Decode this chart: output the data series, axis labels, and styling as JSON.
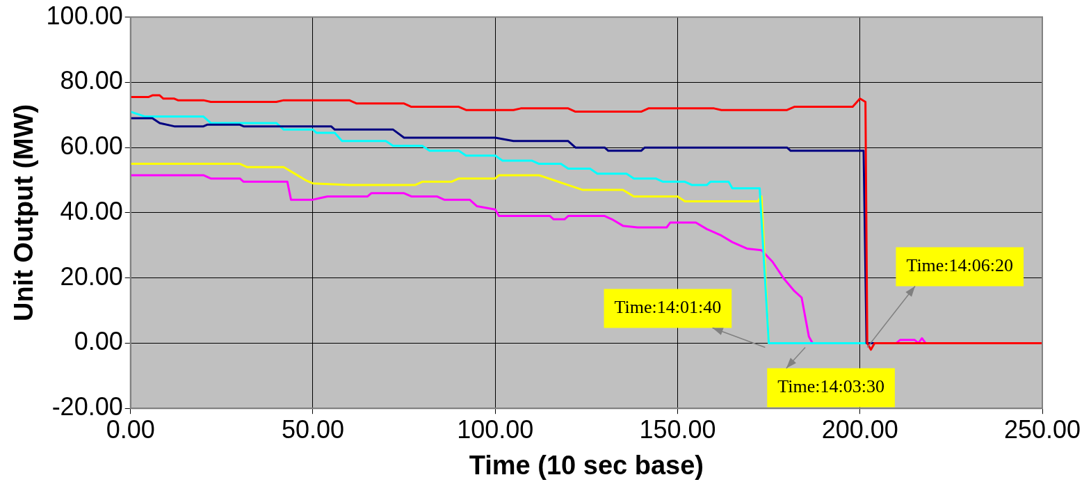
{
  "chart_data": {
    "type": "line",
    "xlabel": "Time (10 sec base)",
    "ylabel": "Unit Output (MW)",
    "xlim": [
      0,
      250
    ],
    "ylim": [
      -20,
      100
    ],
    "xticks": [
      {
        "value": 0,
        "label": "0.00"
      },
      {
        "value": 50,
        "label": "50.00"
      },
      {
        "value": 100,
        "label": "100.00"
      },
      {
        "value": 150,
        "label": "150.00"
      },
      {
        "value": 200,
        "label": "200.00"
      },
      {
        "value": 250,
        "label": "250.00"
      }
    ],
    "yticks": [
      {
        "value": -20,
        "label": "-20.00"
      },
      {
        "value": 0,
        "label": "0.00"
      },
      {
        "value": 20,
        "label": "20.00"
      },
      {
        "value": 40,
        "label": "40.00"
      },
      {
        "value": 60,
        "label": "60.00"
      },
      {
        "value": 80,
        "label": "80.00"
      },
      {
        "value": 100,
        "label": "100.00"
      }
    ],
    "grid": true,
    "marker": "none",
    "line_style": "solid",
    "series": [
      {
        "color": "#ff00ff",
        "x": [
          0,
          20,
          22,
          30,
          31,
          43,
          44,
          50,
          52,
          54,
          65,
          66,
          75,
          77,
          84,
          86,
          93,
          95,
          100,
          101,
          115,
          116,
          119,
          120,
          130,
          132,
          135,
          139,
          147,
          148,
          155,
          158,
          162,
          165,
          169,
          173,
          176,
          179,
          182,
          184,
          185,
          186,
          187,
          210,
          211,
          215,
          216,
          217,
          218,
          220
        ],
        "values": [
          51.5,
          51.5,
          50.5,
          50.5,
          49.5,
          49.5,
          44,
          44,
          44.5,
          45,
          45,
          46,
          46,
          45,
          45,
          44,
          44,
          42,
          41,
          39,
          39,
          38,
          38,
          39,
          39,
          38,
          36,
          35.5,
          35.5,
          37,
          37,
          35,
          33,
          31,
          29,
          28.5,
          25,
          20,
          16,
          14,
          8,
          2,
          0,
          0,
          1,
          1,
          0,
          1.5,
          0,
          0
        ]
      },
      {
        "color": "#ffff00",
        "x": [
          0,
          30,
          32,
          42,
          45,
          48,
          50,
          60,
          78,
          80,
          88,
          90,
          100,
          101,
          112,
          116,
          120,
          124,
          135,
          138,
          150,
          152,
          172,
          173,
          175,
          202
        ],
        "values": [
          55,
          55,
          54,
          54,
          52,
          50,
          49,
          48.5,
          48.5,
          49.5,
          49.5,
          50.5,
          50.5,
          51.5,
          51.5,
          50,
          48.5,
          47,
          47,
          45,
          45,
          43.5,
          43.5,
          45,
          0,
          0
        ]
      },
      {
        "color": "#00ffff",
        "x": [
          0,
          4,
          20,
          22,
          40,
          42,
          50,
          51,
          56,
          58,
          70,
          72,
          80,
          82,
          90,
          92,
          100,
          102,
          110,
          112,
          118,
          120,
          126,
          128,
          136,
          138,
          144,
          146,
          152,
          154,
          158,
          159,
          164,
          165,
          172.5,
          175,
          202
        ],
        "values": [
          71,
          69.5,
          69.5,
          67.5,
          67.5,
          65.5,
          65.5,
          64.5,
          64.5,
          62,
          62,
          60.5,
          60.5,
          59,
          59,
          57.5,
          57.5,
          56,
          56,
          55,
          55,
          53.5,
          53.5,
          52,
          52,
          50.5,
          50.5,
          49.5,
          49.5,
          48.5,
          48.5,
          49.5,
          49.5,
          47.5,
          47.5,
          0,
          0
        ]
      },
      {
        "color": "#000080",
        "x": [
          0,
          6,
          8,
          12,
          20,
          21,
          30,
          31,
          55,
          56,
          72,
          75,
          100,
          105,
          120,
          122,
          130,
          131,
          140,
          141,
          180,
          181,
          201,
          201.8,
          250
        ],
        "values": [
          69,
          69,
          67.5,
          66.5,
          66.5,
          67,
          67,
          66.5,
          66.5,
          65.5,
          65.5,
          63,
          63,
          62,
          62,
          60,
          60,
          59,
          59,
          60,
          60,
          59,
          59,
          0,
          0
        ]
      },
      {
        "color": "#ff0000",
        "x": [
          0,
          5,
          6,
          8,
          9,
          12,
          13,
          20,
          22,
          40,
          42,
          60,
          62,
          75,
          77,
          90,
          92,
          105,
          107,
          120,
          122,
          140,
          142,
          160,
          162,
          180,
          182,
          198,
          200,
          201.5,
          202,
          203,
          204,
          250
        ],
        "values": [
          75.5,
          75.5,
          76,
          76,
          75,
          75,
          74.5,
          74.5,
          74,
          74,
          74.5,
          74.5,
          73.5,
          73.5,
          72.5,
          72.5,
          71.5,
          71.5,
          72,
          72,
          71,
          71,
          72,
          72,
          71.5,
          71.5,
          72.5,
          72.5,
          75,
          74,
          0,
          -2,
          0,
          0
        ]
      }
    ],
    "annotations": [
      {
        "text": "Time:14:01:40",
        "x": 174,
        "y": 0
      },
      {
        "text": "Time:14:03:30",
        "x": 185,
        "y": 0
      },
      {
        "text": "Time:14:06:20",
        "x": 202,
        "y": 0
      }
    ]
  }
}
